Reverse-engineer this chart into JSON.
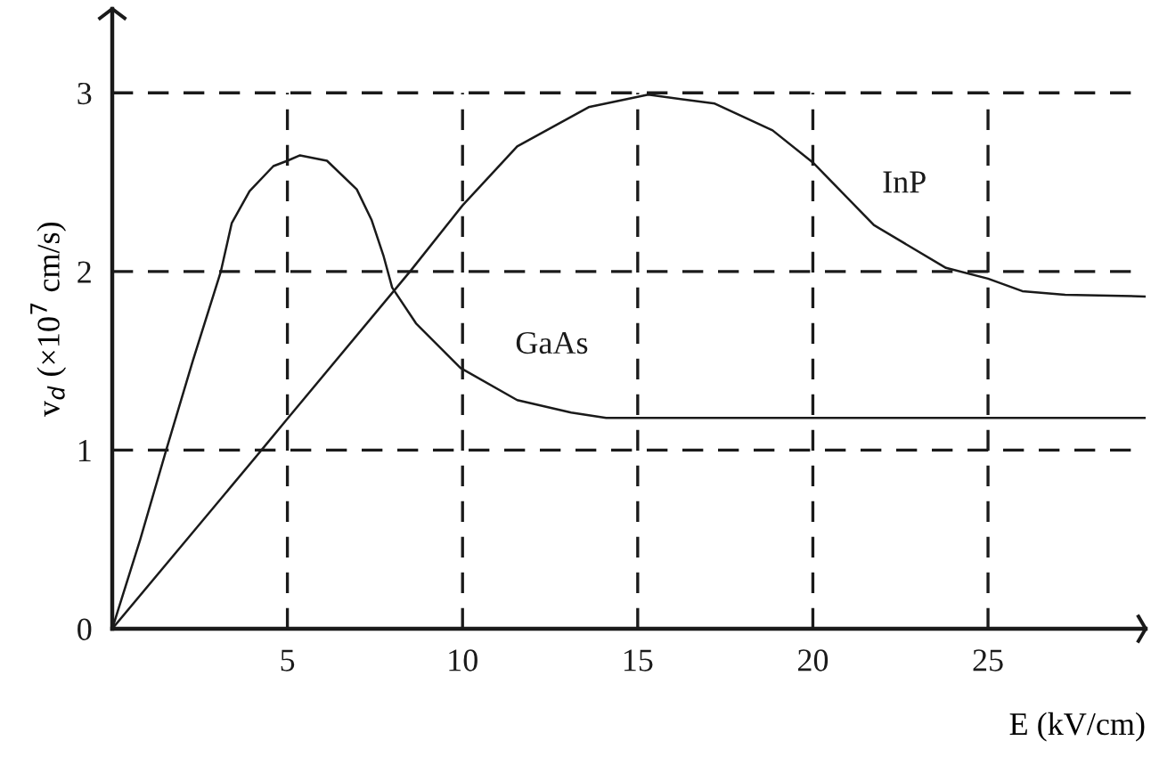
{
  "chart_data": {
    "type": "line",
    "xlabel": "E (kV/cm)",
    "ylabel": "v$_{d}$ (×10$^{7}$ cm/s)",
    "xlim": [
      0,
      29.5
    ],
    "ylim": [
      0,
      3.47
    ],
    "xticks": [
      5,
      10,
      15,
      20,
      25
    ],
    "yticks": [
      0,
      1,
      2,
      3
    ],
    "grid": true,
    "marker": "none",
    "line_style": "solid",
    "series": [
      {
        "name": "GaAs",
        "color": "#1a1a1a",
        "x": [
          0,
          0.8,
          1.54,
          2.3,
          3.1,
          3.41,
          3.92,
          4.6,
          5.0,
          5.36,
          6.13,
          6.98,
          7.4,
          7.74,
          7.99,
          8.67,
          9.94,
          11.56,
          13.1,
          14.1,
          16,
          20,
          25,
          29.5
        ],
        "values": [
          0,
          0.5,
          1,
          1.5,
          2,
          2.27,
          2.45,
          2.59,
          2.62,
          2.65,
          2.62,
          2.46,
          2.29,
          2.09,
          1.91,
          1.71,
          1.46,
          1.28,
          1.21,
          1.18,
          1.18,
          1.18,
          1.18,
          1.18
        ]
      },
      {
        "name": "InP",
        "color": "#1a1a1a",
        "x": [
          0,
          4.26,
          5.02,
          8.5,
          10,
          11.56,
          13.6,
          15.3,
          17.2,
          18.85,
          20.0,
          21.74,
          23.8,
          25.0,
          25.98,
          27.2,
          29.5
        ],
        "values": [
          0,
          1,
          1.18,
          2,
          2.37,
          2.7,
          2.92,
          2.99,
          2.94,
          2.79,
          2.61,
          2.26,
          2.02,
          1.96,
          1.89,
          1.87,
          1.86
        ]
      }
    ]
  }
}
